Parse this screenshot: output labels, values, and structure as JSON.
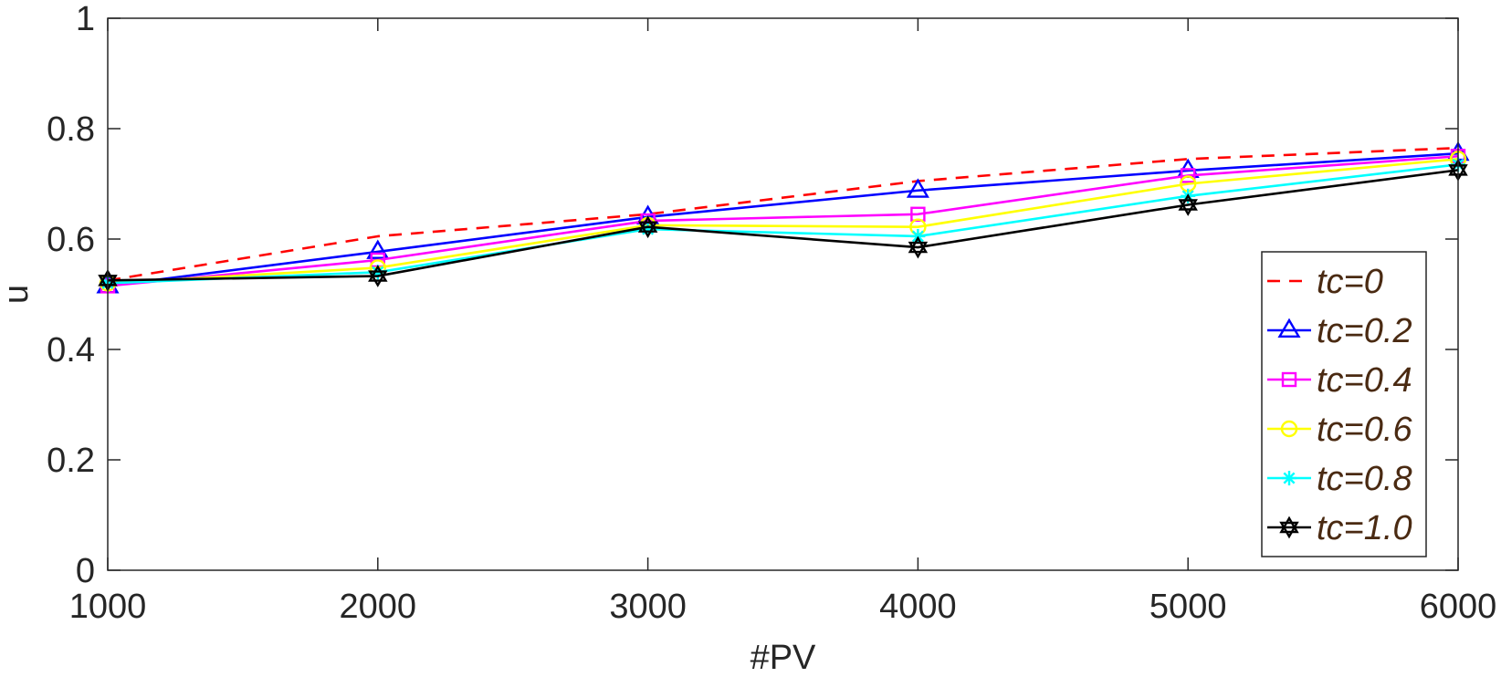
{
  "chart_data": {
    "type": "line",
    "xlabel": "#PV",
    "ylabel": "u",
    "xlim": [
      1000,
      6000
    ],
    "ylim": [
      0,
      1
    ],
    "x": [
      1000,
      2000,
      3000,
      4000,
      5000,
      6000
    ],
    "x_ticks": [
      "1000",
      "2000",
      "3000",
      "4000",
      "5000",
      "6000"
    ],
    "y_ticks": [
      "0",
      "0.2",
      "0.4",
      "0.6",
      "0.8",
      "1"
    ],
    "grid": false,
    "legend_position": "right",
    "series": [
      {
        "name": "tc=0",
        "color": "#ff0000",
        "line_style": "dashed",
        "marker": "none",
        "values": [
          0.525,
          0.605,
          0.645,
          0.705,
          0.745,
          0.765
        ]
      },
      {
        "name": "tc=0.2",
        "color": "#0000ff",
        "line_style": "solid",
        "marker": "triangle",
        "values": [
          0.515,
          0.577,
          0.64,
          0.688,
          0.724,
          0.755
        ]
      },
      {
        "name": "tc=0.4",
        "color": "#ff00ff",
        "line_style": "solid",
        "marker": "square",
        "values": [
          0.515,
          0.562,
          0.633,
          0.645,
          0.715,
          0.75
        ]
      },
      {
        "name": "tc=0.6",
        "color": "#ffff00",
        "line_style": "solid",
        "marker": "circle",
        "values": [
          0.52,
          0.548,
          0.625,
          0.622,
          0.7,
          0.745
        ]
      },
      {
        "name": "tc=0.8",
        "color": "#00ffff",
        "line_style": "solid",
        "marker": "asterisk",
        "values": [
          0.52,
          0.54,
          0.618,
          0.605,
          0.678,
          0.735
        ]
      },
      {
        "name": "tc=1.0",
        "color": "#000000",
        "line_style": "solid",
        "marker": "hexagram",
        "values": [
          0.525,
          0.533,
          0.622,
          0.585,
          0.662,
          0.725
        ]
      }
    ]
  }
}
